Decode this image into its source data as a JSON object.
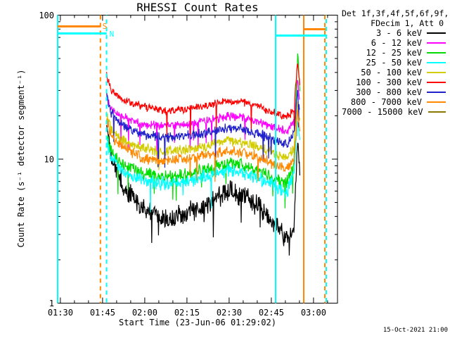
{
  "title": "RHESSI Count Rates",
  "timestamp": "15-Oct-2021 21:00",
  "legend": {
    "header_line1": "Det 1f,3f,4f,5f,6f,9f,",
    "header_line2": "FDecim 1, Att 0",
    "entries": [
      {
        "label": "3 - 6 keV",
        "color": "#000000"
      },
      {
        "label": "6 - 12 keV",
        "color": "#ff00ff"
      },
      {
        "label": "12 - 25 keV",
        "color": "#00dd00"
      },
      {
        "label": "25 - 50 keV",
        "color": "#00ffff"
      },
      {
        "label": "50 - 100 keV",
        "color": "#d2cc00"
      },
      {
        "label": "100 - 300 keV",
        "color": "#ff0000"
      },
      {
        "label": "300 - 800 keV",
        "color": "#2222cc"
      },
      {
        "label": "800 - 7000 keV",
        "color": "#ff8800"
      },
      {
        "label": "7000 - 15000 keV",
        "color": "#8a7800"
      }
    ]
  },
  "chart_data": {
    "type": "line",
    "title": "RHESSI Count Rates",
    "xlabel": "Start Time (23-Jun-06 01:29:02)",
    "ylabel": "Count Rate (s⁻¹ detector segment⁻¹)",
    "y_scale": "log",
    "ylim": [
      1,
      100
    ],
    "x_range_minutes": 99.5,
    "grid": false,
    "legend_position": "outside-right",
    "x_ticks": [
      {
        "label": "01:30",
        "t": 0.97
      },
      {
        "label": "01:45",
        "t": 15.97
      },
      {
        "label": "02:00",
        "t": 30.97
      },
      {
        "label": "02:15",
        "t": 45.97
      },
      {
        "label": "02:30",
        "t": 60.97
      },
      {
        "label": "02:45",
        "t": 75.97
      },
      {
        "label": "03:00",
        "t": 90.97
      }
    ],
    "x_minor_step_minutes": 5,
    "y_ticks": [
      {
        "label": "100",
        "v": 100
      },
      {
        "label": "10",
        "v": 10
      },
      {
        "label": "1",
        "v": 1
      }
    ],
    "series": [
      {
        "name": "3 - 6 keV",
        "color": "#000000",
        "noise": 0.05,
        "t": [
          17.4,
          19,
          23,
          30,
          38,
          46,
          53,
          60,
          66,
          72,
          78,
          81.5,
          84.0,
          85.3,
          86.2
        ],
        "v": [
          18,
          10.5,
          6.6,
          4.5,
          3.9,
          4.2,
          4.9,
          6.0,
          5.7,
          4.5,
          3.4,
          2.85,
          3.2,
          14,
          8
        ]
      },
      {
        "name": "6 - 12 keV",
        "color": "#ff00ff",
        "noise": 0.02,
        "t": [
          17.4,
          19,
          23,
          30,
          38,
          46,
          53,
          60,
          66,
          72,
          78,
          81.5,
          84.0,
          85.3,
          86.2
        ],
        "v": [
          27,
          22,
          19.5,
          17.6,
          17.0,
          17.5,
          18.4,
          19.8,
          19.4,
          18.0,
          16.3,
          15.5,
          18,
          36,
          24
        ]
      },
      {
        "name": "12 - 25 keV",
        "color": "#00dd00",
        "noise": 0.032,
        "t": [
          17.4,
          19,
          23,
          30,
          38,
          46,
          53,
          60,
          66,
          72,
          78,
          81.5,
          84.0,
          85.3,
          86.2
        ],
        "v": [
          14.5,
          11.2,
          9.3,
          7.9,
          7.5,
          7.8,
          8.4,
          9.2,
          9.0,
          8.1,
          7.2,
          6.8,
          9,
          56,
          30
        ]
      },
      {
        "name": "25 - 50 keV",
        "color": "#00ffff",
        "noise": 0.032,
        "t": [
          17.4,
          19,
          23,
          30,
          38,
          46,
          53,
          60,
          66,
          72,
          78,
          81.5,
          84.0,
          85.3,
          86.2
        ],
        "v": [
          13.2,
          10.2,
          8.4,
          7.1,
          6.7,
          7.0,
          7.6,
          8.3,
          8.1,
          7.3,
          6.4,
          6.0,
          7.5,
          19,
          13
        ]
      },
      {
        "name": "50 - 100 keV",
        "color": "#d2cc00",
        "noise": 0.024,
        "t": [
          17.4,
          19,
          23,
          30,
          38,
          46,
          53,
          60,
          66,
          72,
          78,
          81.5,
          84.0,
          85.3,
          86.2
        ],
        "v": [
          20,
          16,
          13.6,
          11.9,
          11.3,
          11.7,
          12.3,
          13.3,
          13.0,
          12.0,
          10.8,
          10.2,
          12,
          26,
          17
        ]
      },
      {
        "name": "100 - 300 keV",
        "color": "#ff0000",
        "noise": 0.018,
        "t": [
          17.4,
          19,
          23,
          30,
          38,
          46,
          53,
          60,
          66,
          72,
          78,
          81.5,
          84.0,
          85.3,
          86.2
        ],
        "v": [
          38,
          30,
          26,
          23.2,
          21.6,
          22.2,
          23.5,
          25.3,
          24.8,
          23.0,
          20.5,
          19.5,
          22,
          48,
          31
        ]
      },
      {
        "name": "300 - 800 keV",
        "color": "#2222cc",
        "noise": 0.022,
        "t": [
          17.4,
          19,
          23,
          30,
          38,
          46,
          53,
          60,
          66,
          72,
          78,
          81.5,
          84.0,
          85.3,
          86.2
        ],
        "v": [
          28,
          21,
          17.4,
          14.8,
          14.1,
          14.5,
          15.3,
          16.4,
          16.1,
          14.9,
          13.4,
          12.6,
          15,
          30,
          20
        ]
      },
      {
        "name": "800 - 7000 keV",
        "color": "#ff8800",
        "noise": 0.026,
        "t": [
          17.4,
          19,
          23,
          30,
          38,
          46,
          53,
          60,
          66,
          72,
          78,
          81.5,
          84.0,
          85.3,
          86.2
        ],
        "v": [
          18.5,
          14.6,
          12.1,
          10.2,
          9.7,
          10.0,
          10.6,
          11.4,
          11.1,
          10.2,
          9.1,
          8.6,
          10,
          22,
          15
        ]
      }
    ],
    "event_lines": [
      {
        "name": "night-start-left",
        "t": 0.0,
        "color": "#00ffff",
        "style": "solid",
        "offset": 0
      },
      {
        "name": "saa-end",
        "t": 15.2,
        "color": "#ff8800",
        "style": "dashed",
        "offset": 0
      },
      {
        "name": "night-end",
        "t": 17.4,
        "color": "#00ffff",
        "style": "dashed",
        "offset": 5
      },
      {
        "name": "night-start",
        "t": 77.5,
        "color": "#00ffff",
        "style": "solid",
        "offset": 0
      },
      {
        "name": "saa-start",
        "t": 87.5,
        "color": "#ff8800",
        "style": "solid",
        "offset": 0
      },
      {
        "name": "saa-edge-right",
        "t": 95.0,
        "color": "#ff8800",
        "style": "dashed",
        "offset": 0
      },
      {
        "name": "night-edge-right",
        "t": 95.5,
        "color": "#00ffff",
        "style": "dashed",
        "offset": 5.5
      }
    ],
    "event_bars": [
      {
        "name": "saa-bar-left",
        "t0": 0.0,
        "t1": 15.2,
        "y": 36,
        "color": "#ff8800"
      },
      {
        "name": "night-bar-left",
        "t0": 0.0,
        "t1": 17.4,
        "y": 46,
        "color": "#00ffff"
      },
      {
        "name": "night-bar-right",
        "t0": 77.5,
        "t1": 95.3,
        "y": 49,
        "color": "#00ffff"
      },
      {
        "name": "saa-bar-right",
        "t0": 87.5,
        "t1": 95.3,
        "y": 40,
        "color": "#ff8800"
      }
    ],
    "event_labels": [
      {
        "text": "S",
        "t": 15.9,
        "y": 37,
        "color": "#ff8800"
      },
      {
        "text": "N",
        "t": 18.4,
        "y": 48,
        "color": "#00ffff"
      }
    ]
  }
}
